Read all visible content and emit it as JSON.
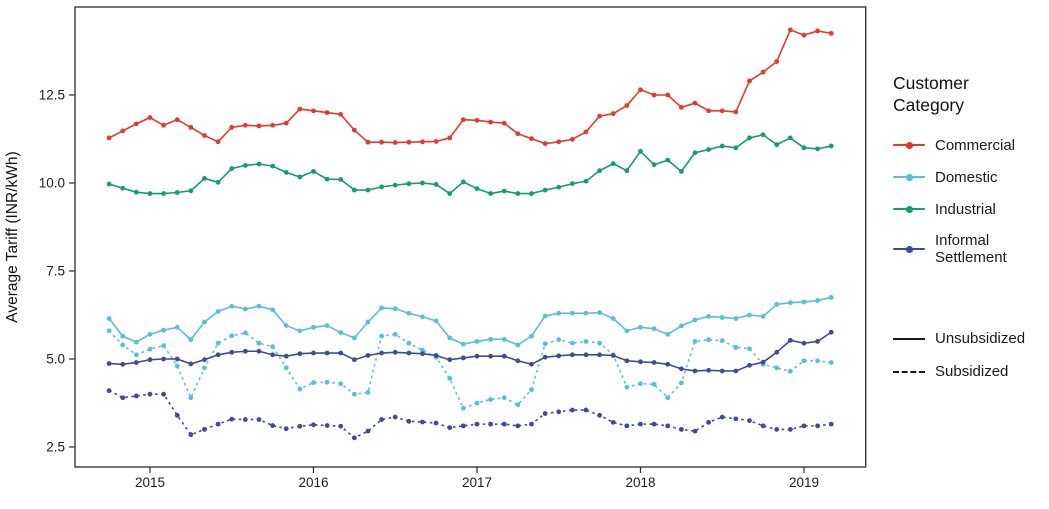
{
  "chart_data": {
    "type": "line",
    "title": "",
    "xlabel": "",
    "ylabel": "Average Tariff (INR/kWh)",
    "x_start": "2014-10",
    "x_frequency": "monthly",
    "x_tick_years": [
      2015,
      2016,
      2017,
      2018,
      2019
    ],
    "x_tick_labels": [
      "2015",
      "2016",
      "2017",
      "2018",
      "2019"
    ],
    "y_ticks": [
      2.5,
      5.0,
      7.5,
      10.0,
      12.5
    ],
    "y_tick_labels": [
      "2.5",
      "5.0",
      "7.5",
      "10.0",
      "12.5"
    ],
    "ylim": [
      2.2,
      14.9
    ],
    "grid": "off",
    "legend_position": "right",
    "series": [
      {
        "name": "Informal Settlement (Subsidized)",
        "customer_category": "Informal Settlement",
        "subsidy": "Subsidized",
        "color": "#3E4C94",
        "dash": "dashed",
        "values": [
          4.1,
          3.9,
          3.95,
          4.0,
          4.0,
          3.4,
          2.85,
          3.0,
          3.15,
          3.29,
          3.28,
          3.28,
          3.11,
          3.02,
          3.09,
          3.13,
          3.11,
          3.09,
          2.76,
          2.95,
          3.28,
          3.35,
          3.23,
          3.21,
          3.18,
          3.05,
          3.1,
          3.15,
          3.15,
          3.15,
          3.1,
          3.15,
          3.45,
          3.5,
          3.55,
          3.55,
          3.4,
          3.2,
          3.1,
          3.15,
          3.15,
          3.1,
          3.0,
          2.95,
          3.2,
          3.35,
          3.3,
          3.25,
          3.1,
          3.0,
          3.0,
          3.1,
          3.1,
          3.15
        ]
      },
      {
        "name": "Domestic (Subsidized)",
        "customer_category": "Domestic",
        "subsidy": "Subsidized",
        "color": "#55C0D6",
        "dash": "dashed",
        "values": [
          5.8,
          5.4,
          5.12,
          5.28,
          5.38,
          4.8,
          3.9,
          4.75,
          5.45,
          5.66,
          5.74,
          5.45,
          5.35,
          4.75,
          4.15,
          4.33,
          4.34,
          4.3,
          4.0,
          4.05,
          5.65,
          5.7,
          5.45,
          5.25,
          5.05,
          4.45,
          3.6,
          3.75,
          3.85,
          3.9,
          3.7,
          4.13,
          5.43,
          5.55,
          5.45,
          5.5,
          5.45,
          5.12,
          4.2,
          4.3,
          4.28,
          3.9,
          4.32,
          5.5,
          5.55,
          5.52,
          5.33,
          5.29,
          4.85,
          4.75,
          4.65,
          4.95,
          4.95,
          4.9
        ]
      },
      {
        "name": "Informal Settlement (Unsubsidized)",
        "customer_category": "Informal Settlement",
        "subsidy": "Unsubsidized",
        "color": "#3E4C94",
        "dash": "solid",
        "values": [
          4.87,
          4.85,
          4.9,
          4.98,
          5.0,
          5.0,
          4.86,
          4.98,
          5.12,
          5.19,
          5.22,
          5.22,
          5.12,
          5.08,
          5.15,
          5.17,
          5.17,
          5.17,
          4.98,
          5.1,
          5.17,
          5.19,
          5.17,
          5.15,
          5.1,
          4.98,
          5.03,
          5.08,
          5.08,
          5.08,
          4.95,
          4.85,
          5.05,
          5.09,
          5.12,
          5.12,
          5.12,
          5.1,
          4.95,
          4.92,
          4.9,
          4.85,
          4.72,
          4.66,
          4.68,
          4.66,
          4.66,
          4.82,
          4.91,
          5.19,
          5.53,
          5.45,
          5.5,
          5.76
        ]
      },
      {
        "name": "Domestic (Unsubsidized)",
        "customer_category": "Domestic",
        "subsidy": "Unsubsidized",
        "color": "#55C0D6",
        "dash": "solid",
        "values": [
          6.15,
          5.65,
          5.48,
          5.7,
          5.82,
          5.9,
          5.55,
          6.05,
          6.35,
          6.5,
          6.42,
          6.5,
          6.4,
          5.95,
          5.8,
          5.9,
          5.95,
          5.75,
          5.6,
          6.05,
          6.45,
          6.43,
          6.3,
          6.2,
          6.08,
          5.6,
          5.42,
          5.5,
          5.56,
          5.56,
          5.4,
          5.65,
          6.22,
          6.3,
          6.3,
          6.3,
          6.32,
          6.15,
          5.8,
          5.9,
          5.86,
          5.7,
          5.94,
          6.11,
          6.21,
          6.18,
          6.15,
          6.25,
          6.21,
          6.55,
          6.6,
          6.62,
          6.66,
          6.75
        ]
      },
      {
        "name": "Industrial (Unsubsidized)",
        "customer_category": "Industrial",
        "subsidy": "Unsubsidized",
        "color": "#149B77",
        "dash": "solid",
        "values": [
          9.97,
          9.85,
          9.74,
          9.7,
          9.7,
          9.73,
          9.78,
          10.13,
          10.02,
          10.41,
          10.5,
          10.54,
          10.48,
          10.3,
          10.17,
          10.33,
          10.11,
          10.1,
          9.8,
          9.8,
          9.89,
          9.94,
          9.98,
          10.0,
          9.96,
          9.7,
          10.03,
          9.84,
          9.7,
          9.77,
          9.7,
          9.7,
          9.8,
          9.88,
          9.98,
          10.05,
          10.35,
          10.55,
          10.35,
          10.9,
          10.52,
          10.65,
          10.33,
          10.86,
          10.95,
          11.05,
          11.0,
          11.28,
          11.37,
          11.09,
          11.28,
          11.0,
          10.97,
          11.05
        ]
      },
      {
        "name": "Commercial (Unsubsidized)",
        "customer_category": "Commercial",
        "subsidy": "Unsubsidized",
        "color": "#E23A2C",
        "dash": "solid",
        "values": [
          11.28,
          11.48,
          11.68,
          11.86,
          11.64,
          11.8,
          11.58,
          11.35,
          11.17,
          11.58,
          11.64,
          11.62,
          11.64,
          11.7,
          12.1,
          12.05,
          12.0,
          11.95,
          11.5,
          11.16,
          11.16,
          11.15,
          11.16,
          11.17,
          11.18,
          11.28,
          11.8,
          11.78,
          11.73,
          11.7,
          11.4,
          11.26,
          11.12,
          11.17,
          11.24,
          11.45,
          11.9,
          11.97,
          12.2,
          12.65,
          12.5,
          12.5,
          12.15,
          12.27,
          12.05,
          12.05,
          12.02,
          12.9,
          13.15,
          13.45,
          14.35,
          14.2,
          14.32,
          14.25
        ]
      }
    ],
    "legend": {
      "color_title": "Customer\nCategory",
      "color_entries": [
        {
          "label": "Commercial",
          "color": "#E23A2C"
        },
        {
          "label": "Domestic",
          "color": "#55C0D6"
        },
        {
          "label": "Industrial",
          "color": "#149B77"
        },
        {
          "label": "Informal\nSettlement",
          "color": "#3E4C94"
        }
      ],
      "linetype_entries": [
        {
          "label": "Unsubsidized",
          "dash": "solid"
        },
        {
          "label": "Subsidized",
          "dash": "dashed"
        }
      ]
    }
  }
}
